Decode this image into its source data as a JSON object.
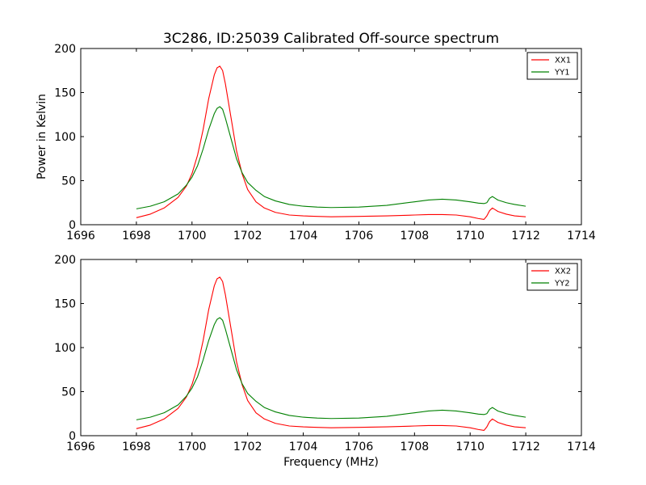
{
  "figure": {
    "title": "3C286, ID:25039 Calibrated Off-source spectrum"
  },
  "chart_data": [
    {
      "type": "line",
      "title": "3C286, ID:25039 Calibrated Off-source spectrum",
      "xlabel": "",
      "ylabel": "Power in Kelvin",
      "xlim": [
        1696,
        1714
      ],
      "ylim": [
        0,
        200
      ],
      "x_ticks": [
        1696,
        1698,
        1700,
        1702,
        1704,
        1706,
        1708,
        1710,
        1712,
        1714
      ],
      "y_ticks": [
        0,
        50,
        100,
        150,
        200
      ],
      "grid": false,
      "legend": "top-right",
      "x": [
        1698.0,
        1698.5,
        1699.0,
        1699.5,
        1699.8,
        1700.0,
        1700.2,
        1700.4,
        1700.6,
        1700.8,
        1700.9,
        1701.0,
        1701.1,
        1701.2,
        1701.4,
        1701.6,
        1701.8,
        1702.0,
        1702.3,
        1702.6,
        1703.0,
        1703.5,
        1704.0,
        1704.5,
        1705.0,
        1706.0,
        1707.0,
        1708.0,
        1708.5,
        1709.0,
        1709.5,
        1710.0,
        1710.3,
        1710.5,
        1710.6,
        1710.7,
        1710.8,
        1710.9,
        1711.0,
        1711.3,
        1711.6,
        1712.0
      ],
      "series": [
        {
          "name": "XX1",
          "color": "#ff0000",
          "values": [
            8,
            12,
            19,
            31,
            44,
            58,
            79,
            108,
            143,
            170,
            178,
            180,
            175,
            160,
            122,
            84,
            58,
            40,
            26,
            19,
            14,
            11,
            10,
            9.5,
            9,
            9.5,
            10,
            11,
            11.5,
            11.5,
            11,
            9,
            7,
            6,
            10,
            16,
            19,
            17,
            15,
            12,
            10,
            9
          ]
        },
        {
          "name": "YY1",
          "color": "#008000",
          "values": [
            18,
            21,
            26,
            35,
            45,
            54,
            67,
            86,
            108,
            126,
            132,
            134,
            131,
            121,
            98,
            75,
            59,
            48,
            39,
            32,
            27,
            23,
            21,
            20,
            19.5,
            20,
            22,
            26,
            28,
            29,
            28,
            26,
            24.5,
            24,
            25,
            30,
            32,
            30,
            28,
            25,
            23,
            21
          ]
        }
      ]
    },
    {
      "type": "line",
      "title": "",
      "xlabel": "Frequency (MHz)",
      "ylabel": "",
      "xlim": [
        1696,
        1714
      ],
      "ylim": [
        0,
        200
      ],
      "x_ticks": [
        1696,
        1698,
        1700,
        1702,
        1704,
        1706,
        1708,
        1710,
        1712,
        1714
      ],
      "y_ticks": [
        0,
        50,
        100,
        150,
        200
      ],
      "grid": false,
      "legend": "top-right",
      "x": [
        1698.0,
        1698.5,
        1699.0,
        1699.5,
        1699.8,
        1700.0,
        1700.2,
        1700.4,
        1700.6,
        1700.8,
        1700.9,
        1701.0,
        1701.1,
        1701.2,
        1701.4,
        1701.6,
        1701.8,
        1702.0,
        1702.3,
        1702.6,
        1703.0,
        1703.5,
        1704.0,
        1704.5,
        1705.0,
        1706.0,
        1707.0,
        1708.0,
        1708.5,
        1709.0,
        1709.5,
        1710.0,
        1710.3,
        1710.5,
        1710.6,
        1710.7,
        1710.8,
        1710.9,
        1711.0,
        1711.3,
        1711.6,
        1712.0
      ],
      "series": [
        {
          "name": "XX2",
          "color": "#ff0000",
          "values": [
            8,
            12,
            19,
            31,
            44,
            58,
            79,
            108,
            143,
            170,
            178,
            180,
            175,
            160,
            122,
            84,
            58,
            40,
            26,
            19,
            14,
            11,
            10,
            9.5,
            9,
            9.5,
            10,
            11,
            11.5,
            11.5,
            11,
            9,
            7,
            6,
            10,
            16,
            19,
            17,
            15,
            12,
            10,
            9
          ]
        },
        {
          "name": "YY2",
          "color": "#008000",
          "values": [
            18,
            21,
            26,
            35,
            45,
            54,
            67,
            86,
            108,
            126,
            132,
            134,
            131,
            121,
            98,
            75,
            59,
            48,
            39,
            32,
            27,
            23,
            21,
            20,
            19.5,
            20,
            22,
            26,
            28,
            29,
            28,
            26,
            24.5,
            24,
            25,
            30,
            32,
            30,
            28,
            25,
            23,
            21
          ]
        }
      ]
    }
  ]
}
